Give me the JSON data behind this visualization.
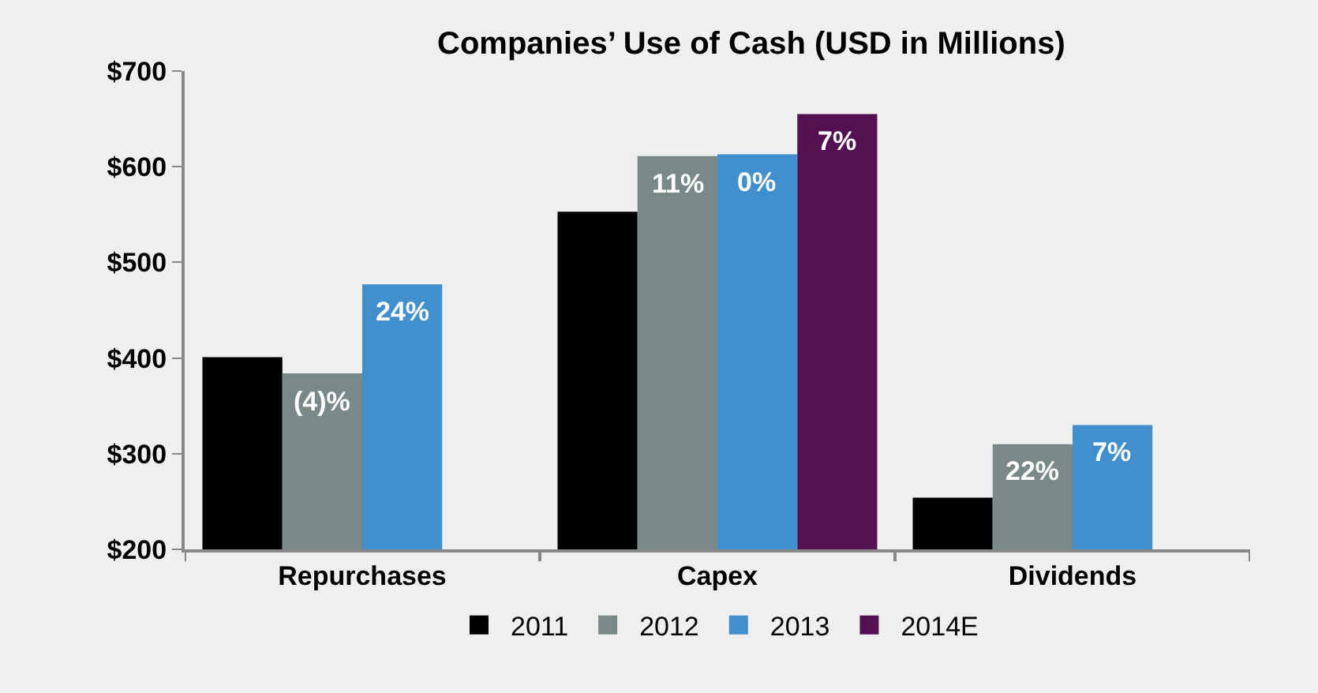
{
  "chart_data": {
    "type": "bar",
    "title": "Companies’ Use of Cash (USD in Millions)",
    "categories": [
      "Repurchases",
      "Capex",
      "Dividends"
    ],
    "series": [
      {
        "name": "2011",
        "color": "#000000",
        "values": [
          401,
          553,
          254
        ]
      },
      {
        "name": "2012",
        "color": "#788987",
        "values": [
          384,
          611,
          310
        ]
      },
      {
        "name": "2013",
        "color": "#418fcd",
        "values": [
          477,
          613,
          330
        ]
      },
      {
        "name": "2014E",
        "color": "#541152",
        "values": [
          null,
          655,
          null
        ]
      }
    ],
    "annotations": [
      {
        "text": "(4)%",
        "x": "Repurchases",
        "y": 384
      },
      {
        "text": "24%",
        "x": "Repurchases",
        "y": 477
      },
      {
        "text": "11%",
        "x": "Capex",
        "y": 611
      },
      {
        "text": "0%",
        "x": "Capex",
        "y": 613
      },
      {
        "text": "22%",
        "x": "Dividends",
        "y": 310
      },
      {
        "text": "7%",
        "x": "Dividends",
        "y": 330
      },
      {
        "text": "7%",
        "y": 655
      }
    ],
    "ylim": [
      200,
      700
    ],
    "yticks": [
      {
        "value": 200,
        "label": "$200"
      },
      {
        "value": 300,
        "label": "$300"
      },
      {
        "value": 400,
        "label": "$400"
      },
      {
        "value": 500,
        "label": "$500"
      },
      {
        "value": 600,
        "label": "$600"
      },
      {
        "value": 700,
        "label": "$700"
      }
    ],
    "grid": false,
    "legend": "bottom"
  }
}
